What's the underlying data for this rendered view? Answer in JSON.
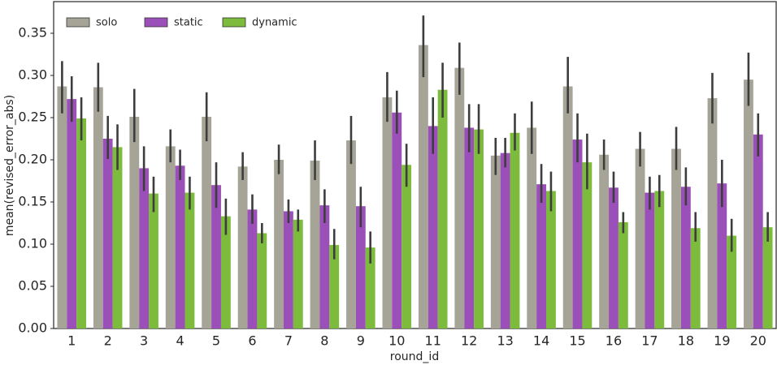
{
  "chart_data": {
    "type": "bar",
    "xlabel": "round_id",
    "ylabel": "mean(revised_error_abs)",
    "categories": [
      "1",
      "2",
      "3",
      "4",
      "5",
      "6",
      "7",
      "8",
      "9",
      "10",
      "11",
      "12",
      "13",
      "14",
      "15",
      "16",
      "17",
      "18",
      "19",
      "20"
    ],
    "series": [
      {
        "name": "solo",
        "color": "#a5a497",
        "values": [
          0.287,
          0.286,
          0.251,
          0.216,
          0.251,
          0.192,
          0.2,
          0.199,
          0.223,
          0.274,
          0.336,
          0.309,
          0.205,
          0.238,
          0.287,
          0.206,
          0.213,
          0.213,
          0.273,
          0.295
        ],
        "ci_low": [
          0.255,
          0.257,
          0.221,
          0.197,
          0.222,
          0.176,
          0.183,
          0.176,
          0.195,
          0.245,
          0.298,
          0.277,
          0.182,
          0.207,
          0.255,
          0.188,
          0.192,
          0.188,
          0.243,
          0.264
        ],
        "ci_high": [
          0.317,
          0.315,
          0.284,
          0.236,
          0.28,
          0.209,
          0.218,
          0.223,
          0.252,
          0.304,
          0.371,
          0.339,
          0.226,
          0.269,
          0.322,
          0.224,
          0.233,
          0.239,
          0.303,
          0.327
        ]
      },
      {
        "name": "static",
        "color": "#9b4fb8",
        "values": [
          0.272,
          0.225,
          0.19,
          0.193,
          0.17,
          0.141,
          0.139,
          0.146,
          0.145,
          0.256,
          0.24,
          0.238,
          0.208,
          0.171,
          0.224,
          0.167,
          0.161,
          0.168,
          0.172,
          0.23
        ],
        "ci_low": [
          0.245,
          0.201,
          0.163,
          0.176,
          0.143,
          0.124,
          0.125,
          0.125,
          0.12,
          0.231,
          0.207,
          0.209,
          0.191,
          0.149,
          0.197,
          0.149,
          0.141,
          0.146,
          0.144,
          0.204
        ],
        "ci_high": [
          0.299,
          0.252,
          0.216,
          0.212,
          0.197,
          0.159,
          0.153,
          0.165,
          0.168,
          0.282,
          0.274,
          0.266,
          0.226,
          0.195,
          0.255,
          0.186,
          0.18,
          0.191,
          0.2,
          0.255
        ]
      },
      {
        "name": "dynamic",
        "color": "#7cbb3b",
        "values": [
          0.249,
          0.215,
          0.16,
          0.161,
          0.133,
          0.113,
          0.129,
          0.099,
          0.096,
          0.194,
          0.283,
          0.236,
          0.232,
          0.163,
          0.197,
          0.126,
          0.163,
          0.119,
          0.11,
          0.12
        ],
        "ci_low": [
          0.223,
          0.188,
          0.138,
          0.141,
          0.111,
          0.101,
          0.115,
          0.082,
          0.077,
          0.168,
          0.25,
          0.207,
          0.211,
          0.139,
          0.165,
          0.113,
          0.144,
          0.103,
          0.091,
          0.103
        ],
        "ci_high": [
          0.274,
          0.242,
          0.18,
          0.18,
          0.154,
          0.125,
          0.141,
          0.118,
          0.115,
          0.219,
          0.315,
          0.266,
          0.255,
          0.186,
          0.231,
          0.138,
          0.182,
          0.138,
          0.13,
          0.138
        ]
      }
    ],
    "ylim": [
      0,
      0.3875
    ],
    "yticks": [
      {
        "value": 0,
        "label": "0.00"
      },
      {
        "value": 0.05,
        "label": "0.05"
      },
      {
        "value": 0.1,
        "label": "0.10"
      },
      {
        "value": 0.15,
        "label": "0.15"
      },
      {
        "value": 0.2,
        "label": "0.20"
      },
      {
        "value": 0.25,
        "label": "0.25"
      },
      {
        "value": 0.3,
        "label": "0.30"
      },
      {
        "value": 0.35,
        "label": "0.35"
      }
    ],
    "grid": false,
    "legend": "upper left"
  }
}
